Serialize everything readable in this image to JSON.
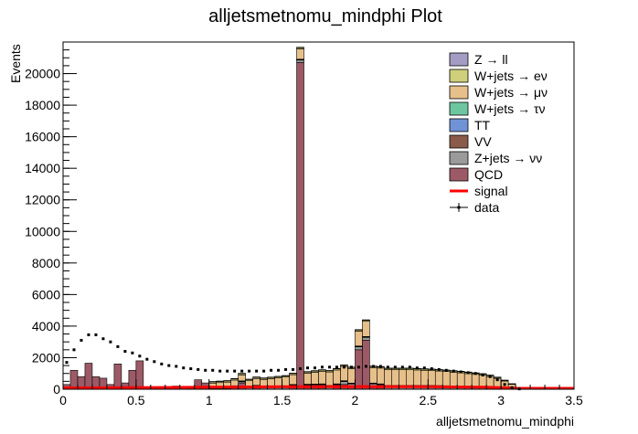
{
  "chart_data": {
    "type": "histogram",
    "title": "alljetsmetnomu_mindphi Plot",
    "xlabel": "alljetsmetnomu_mindphi",
    "ylabel": "Events",
    "xlim": [
      0,
      3.5
    ],
    "ylim": [
      0,
      22000
    ],
    "x_ticks": [
      0,
      0.5,
      1,
      1.5,
      2,
      2.5,
      3,
      3.5
    ],
    "x_tick_labels": [
      "0",
      "0.5",
      "1",
      "1.5",
      "2",
      "2.5",
      "3",
      "3.5"
    ],
    "y_ticks": [
      0,
      2000,
      4000,
      6000,
      8000,
      10000,
      12000,
      14000,
      16000,
      18000,
      20000
    ],
    "y_tick_labels": [
      "0",
      "2000",
      "4000",
      "6000",
      "8000",
      "10000",
      "12000",
      "14000",
      "16000",
      "18000",
      "20000"
    ],
    "bin_edges_start": 0,
    "bin_width": 0.05,
    "legend_position": "top-right",
    "legend": [
      {
        "label": "Z → ll",
        "color": "#a59cc4",
        "style": "fill"
      },
      {
        "label": "W+jets → eν",
        "color": "#cfcf7c",
        "style": "fill"
      },
      {
        "label": "W+jets → μν",
        "color": "#e6bf8a",
        "style": "fill"
      },
      {
        "label": "W+jets → τν",
        "color": "#6dc6a0",
        "style": "fill"
      },
      {
        "label": "TT",
        "color": "#7092d6",
        "style": "fill"
      },
      {
        "label": "VV",
        "color": "#8a5a4a",
        "style": "fill"
      },
      {
        "label": "Z+jets → νν",
        "color": "#9a9a9a",
        "style": "fill"
      },
      {
        "label": "QCD",
        "color": "#9c5a66",
        "style": "fill"
      },
      {
        "label": "signal",
        "color": "#ff0000",
        "style": "line"
      },
      {
        "label": "data",
        "color": "#000000",
        "style": "marker"
      }
    ],
    "series": [
      {
        "name": "QCD",
        "color": "#9c5a66",
        "values": [
          300,
          1200,
          800,
          1650,
          800,
          700,
          300,
          1600,
          400,
          1200,
          1800,
          100,
          100,
          100,
          100,
          200,
          0,
          150,
          600,
          400,
          0,
          0,
          0,
          100,
          400,
          0,
          100,
          0,
          0,
          0,
          0,
          100,
          20700,
          100,
          100,
          100,
          0,
          100,
          300,
          150,
          2500,
          3100,
          150,
          100,
          0,
          0,
          0,
          0,
          0,
          0,
          0,
          0,
          0,
          0,
          0,
          0,
          0,
          0,
          0,
          0,
          0,
          0,
          0,
          0,
          0,
          0,
          0,
          0,
          0,
          0
        ]
      },
      {
        "name": "Z+jets → νν",
        "color": "#9a9a9a",
        "values": [
          0,
          0,
          0,
          0,
          0,
          0,
          0,
          0,
          0,
          0,
          0,
          0,
          0,
          0,
          0,
          0,
          0,
          0,
          0,
          0,
          50,
          60,
          70,
          80,
          90,
          100,
          110,
          120,
          130,
          140,
          150,
          160,
          170,
          180,
          190,
          200,
          200,
          200,
          200,
          200,
          200,
          200,
          200,
          200,
          200,
          200,
          200,
          200,
          200,
          200,
          200,
          190,
          180,
          170,
          160,
          150,
          140,
          130,
          110,
          90,
          60,
          40,
          20,
          0,
          0,
          0,
          0,
          0,
          0,
          0
        ]
      },
      {
        "name": "VV",
        "color": "#8a5a4a",
        "values": [
          0,
          0,
          0,
          0,
          0,
          0,
          0,
          0,
          0,
          0,
          0,
          0,
          0,
          0,
          0,
          0,
          0,
          0,
          0,
          0,
          10,
          10,
          10,
          10,
          10,
          10,
          10,
          10,
          10,
          10,
          10,
          10,
          10,
          10,
          10,
          10,
          10,
          10,
          10,
          10,
          10,
          10,
          10,
          10,
          10,
          10,
          10,
          10,
          10,
          10,
          10,
          10,
          10,
          10,
          10,
          10,
          10,
          10,
          10,
          10,
          10,
          10,
          0,
          0,
          0,
          0,
          0,
          0,
          0,
          0
        ]
      },
      {
        "name": "TT",
        "color": "#7092d6",
        "values": [
          0,
          0,
          0,
          0,
          0,
          0,
          0,
          0,
          0,
          0,
          0,
          0,
          0,
          0,
          0,
          0,
          0,
          0,
          0,
          0,
          10,
          10,
          10,
          10,
          10,
          10,
          10,
          10,
          10,
          10,
          10,
          10,
          10,
          10,
          10,
          10,
          10,
          10,
          10,
          10,
          10,
          10,
          10,
          10,
          10,
          10,
          10,
          10,
          10,
          10,
          10,
          10,
          10,
          10,
          10,
          10,
          10,
          10,
          10,
          10,
          10,
          10,
          0,
          0,
          0,
          0,
          0,
          0,
          0,
          0
        ]
      },
      {
        "name": "W+jets → τν",
        "color": "#6dc6a0",
        "values": [
          0,
          0,
          0,
          0,
          0,
          0,
          0,
          0,
          0,
          0,
          0,
          0,
          0,
          0,
          0,
          0,
          0,
          0,
          0,
          0,
          20,
          20,
          20,
          20,
          20,
          20,
          20,
          20,
          20,
          20,
          20,
          20,
          20,
          20,
          20,
          20,
          20,
          20,
          20,
          20,
          20,
          20,
          20,
          20,
          20,
          20,
          20,
          20,
          20,
          20,
          20,
          20,
          20,
          20,
          20,
          20,
          20,
          20,
          20,
          20,
          20,
          10,
          0,
          0,
          0,
          0,
          0,
          0,
          0,
          0
        ]
      },
      {
        "name": "W+jets → μν",
        "color": "#e6bf8a",
        "values": [
          0,
          0,
          0,
          0,
          0,
          0,
          0,
          0,
          0,
          0,
          0,
          0,
          0,
          0,
          0,
          0,
          0,
          0,
          0,
          0,
          300,
          320,
          340,
          360,
          380,
          400,
          430,
          460,
          500,
          540,
          580,
          620,
          660,
          700,
          750,
          800,
          850,
          880,
          900,
          920,
          940,
          960,
          980,
          1000,
          1000,
          1000,
          1000,
          1000,
          980,
          960,
          940,
          920,
          900,
          870,
          840,
          800,
          760,
          720,
          650,
          560,
          420,
          250,
          50,
          0,
          0,
          0,
          0,
          0,
          0,
          0
        ]
      },
      {
        "name": "W+jets → eν",
        "color": "#cfcf7c",
        "values": [
          0,
          0,
          0,
          0,
          0,
          0,
          0,
          0,
          0,
          0,
          0,
          0,
          0,
          0,
          0,
          0,
          0,
          0,
          0,
          0,
          80,
          80,
          80,
          80,
          80,
          80,
          80,
          80,
          80,
          80,
          80,
          80,
          80,
          80,
          80,
          80,
          80,
          80,
          80,
          80,
          80,
          80,
          80,
          80,
          80,
          80,
          80,
          80,
          80,
          80,
          80,
          80,
          80,
          80,
          80,
          80,
          80,
          80,
          80,
          60,
          40,
          20,
          0,
          0,
          0,
          0,
          0,
          0,
          0,
          0
        ]
      },
      {
        "name": "Z → ll",
        "color": "#a59cc4",
        "values": [
          0,
          0,
          0,
          0,
          0,
          0,
          0,
          0,
          0,
          0,
          0,
          0,
          0,
          0,
          0,
          0,
          0,
          0,
          0,
          0,
          20,
          20,
          20,
          20,
          20,
          20,
          20,
          20,
          20,
          20,
          20,
          20,
          20,
          20,
          20,
          20,
          20,
          20,
          20,
          20,
          20,
          20,
          20,
          20,
          20,
          20,
          20,
          20,
          20,
          20,
          20,
          20,
          20,
          20,
          20,
          20,
          20,
          20,
          20,
          20,
          20,
          10,
          0,
          0,
          0,
          0,
          0,
          0,
          0,
          0
        ]
      }
    ],
    "signal": {
      "name": "signal",
      "color": "#ff0000",
      "x": [
        0,
        0.5,
        1.0,
        1.5,
        2.0,
        2.5,
        2.9,
        3.1,
        3.5
      ],
      "y": [
        20,
        40,
        70,
        100,
        110,
        100,
        70,
        10,
        0
      ]
    },
    "data": {
      "name": "data",
      "color": "#000000",
      "x": [
        0.025,
        0.075,
        0.125,
        0.175,
        0.225,
        0.275,
        0.325,
        0.375,
        0.425,
        0.475,
        0.525,
        0.575,
        0.625,
        0.675,
        0.725,
        0.775,
        0.825,
        0.875,
        0.925,
        0.975,
        1.025,
        1.075,
        1.125,
        1.175,
        1.225,
        1.275,
        1.325,
        1.375,
        1.425,
        1.475,
        1.525,
        1.575,
        1.625,
        1.675,
        1.725,
        1.775,
        1.825,
        1.875,
        1.925,
        1.975,
        2.025,
        2.075,
        2.125,
        2.175,
        2.225,
        2.275,
        2.325,
        2.375,
        2.425,
        2.475,
        2.525,
        2.575,
        2.625,
        2.675,
        2.725,
        2.775,
        2.825,
        2.875,
        2.925,
        2.975,
        3.025,
        3.075,
        3.125
      ],
      "y": [
        1700,
        2500,
        3100,
        3450,
        3450,
        3200,
        3000,
        2700,
        2400,
        2300,
        2100,
        1900,
        1750,
        1600,
        1500,
        1450,
        1350,
        1300,
        1250,
        1200,
        1200,
        1150,
        1150,
        1150,
        1150,
        1150,
        1150,
        1150,
        1200,
        1200,
        1250,
        1250,
        1300,
        1350,
        1350,
        1400,
        1400,
        1400,
        1400,
        1400,
        1400,
        1450,
        1450,
        1450,
        1400,
        1400,
        1400,
        1400,
        1350,
        1350,
        1300,
        1250,
        1200,
        1150,
        1100,
        1050,
        1000,
        900,
        800,
        600,
        300,
        100,
        20
      ]
    }
  }
}
